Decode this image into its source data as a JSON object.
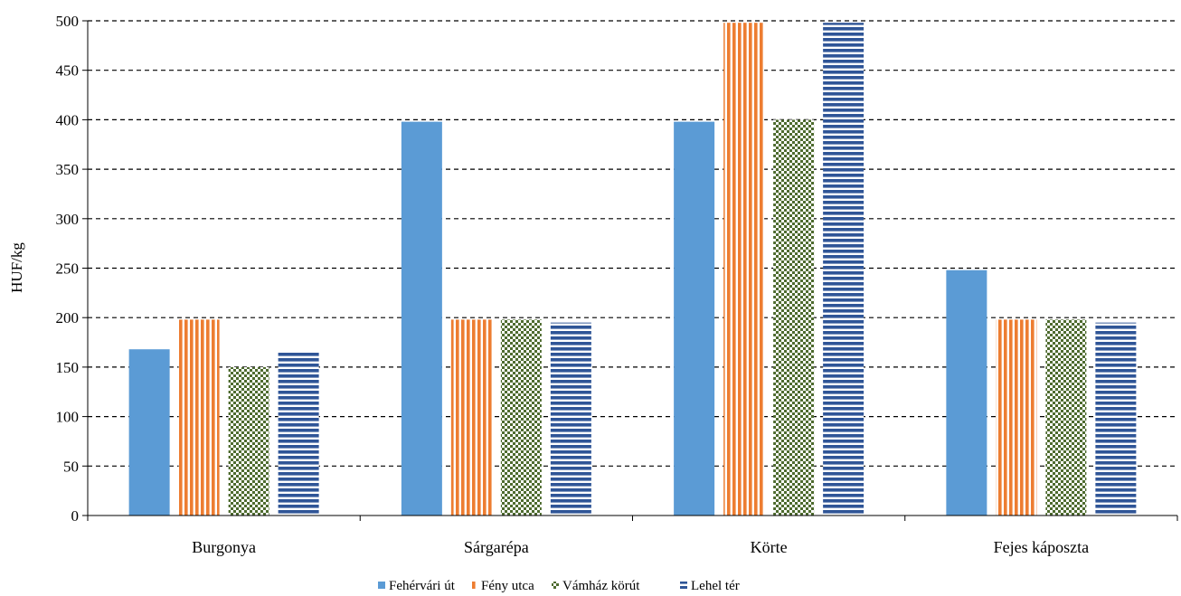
{
  "chart_data": {
    "type": "bar",
    "ylabel": "HUF/kg",
    "ylim": [
      0,
      500
    ],
    "yticks": [
      0,
      50,
      100,
      150,
      200,
      250,
      300,
      350,
      400,
      450,
      500
    ],
    "grid": "horizontal-dashed",
    "legend_position": "bottom",
    "categories": [
      "Burgonya",
      "Sárgarépa",
      "Körte",
      "Fejes káposzta"
    ],
    "series": [
      {
        "name": "Fehérvári út",
        "values": [
          168,
          398,
          398,
          248
        ],
        "color": "#5b9bd5",
        "pattern": "solid"
      },
      {
        "name": "Fény utca",
        "values": [
          198,
          198,
          498,
          198
        ],
        "color": "#ed7d31",
        "pattern": "vertical-stripes"
      },
      {
        "name": "Vámház körút",
        "values": [
          150,
          198,
          400,
          198
        ],
        "color": "#4e6b2f",
        "pattern": "checker"
      },
      {
        "name": "Lehel tér",
        "values": [
          165,
          195,
          498,
          195
        ],
        "color": "#2f5597",
        "pattern": "horizontal-stripes"
      }
    ]
  }
}
